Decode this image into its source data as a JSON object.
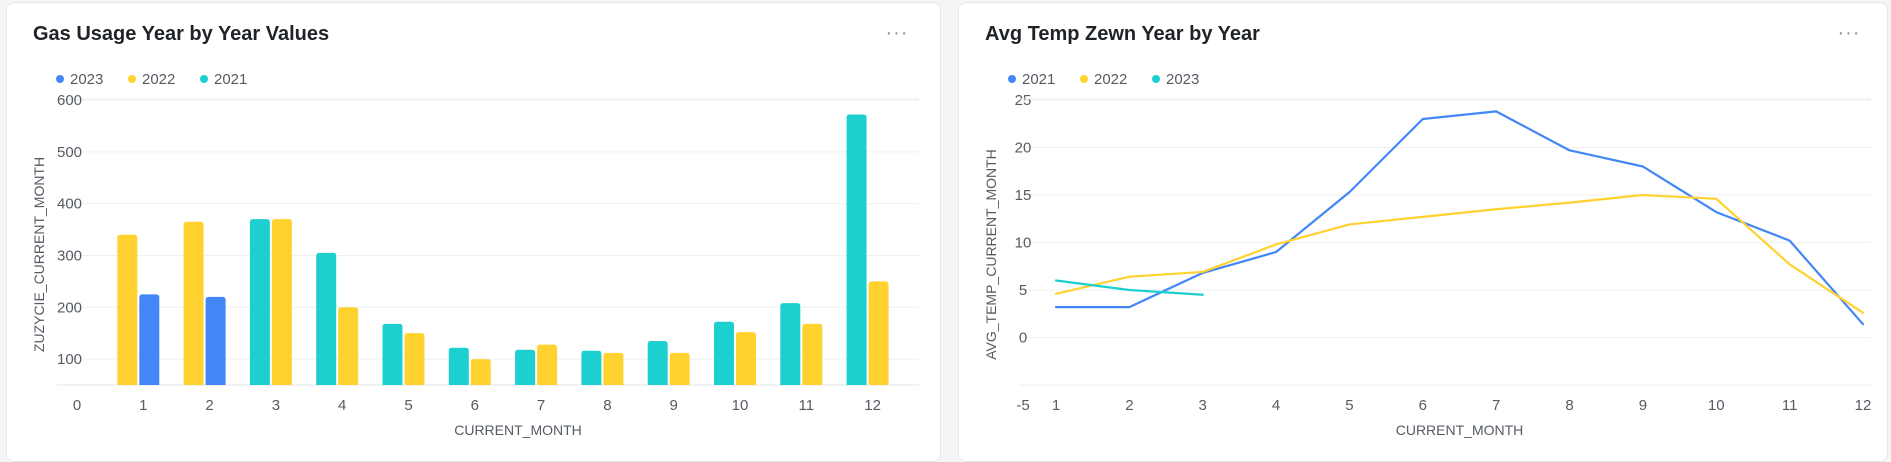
{
  "cards": [
    {
      "title": "Gas Usage Year by Year Values",
      "menu_label": "···"
    },
    {
      "title": "Avg Temp Zewn Year by Year",
      "menu_label": "···"
    }
  ],
  "chart_data": [
    {
      "type": "bar",
      "title": "Gas Usage Year by Year Values",
      "xlabel": "CURRENT_MONTH",
      "ylabel": "ZUZYCIE_CURRENT_MONTH",
      "x_ticks": [
        "0",
        "1",
        "2",
        "3",
        "4",
        "5",
        "6",
        "7",
        "8",
        "9",
        "10",
        "11",
        "12"
      ],
      "y_ticks": [
        "100",
        "200",
        "300",
        "400",
        "500",
        "600"
      ],
      "ylim": [
        50,
        600
      ],
      "xlim": [
        0,
        12.7
      ],
      "grid": true,
      "legend_position": "top-left",
      "series": [
        {
          "name": "2023",
          "color": "#4287f5",
          "points": [
            [
              1,
              225
            ],
            [
              2,
              220
            ]
          ]
        },
        {
          "name": "2022",
          "color": "#ffd230",
          "points": [
            [
              1,
              340
            ],
            [
              2,
              365
            ],
            [
              3,
              370
            ],
            [
              4,
              200
            ],
            [
              5,
              150
            ],
            [
              6,
              100
            ],
            [
              7,
              128
            ],
            [
              8,
              112
            ],
            [
              9,
              112
            ],
            [
              10,
              152
            ],
            [
              11,
              168
            ],
            [
              12,
              250
            ]
          ]
        },
        {
          "name": "2021",
          "color": "#1ecfcf",
          "points": [
            [
              3,
              370
            ],
            [
              4,
              305
            ],
            [
              5,
              168
            ],
            [
              6,
              122
            ],
            [
              7,
              118
            ],
            [
              8,
              116
            ],
            [
              9,
              135
            ],
            [
              10,
              172
            ],
            [
              11,
              208
            ],
            [
              12,
              572
            ]
          ]
        }
      ]
    },
    {
      "type": "line",
      "title": "Avg Temp Zewn Year by Year",
      "xlabel": "CURRENT_MONTH",
      "ylabel": "AVG_TEMP_CURRENT_MONTH",
      "x_ticks": [
        "1",
        "2",
        "3",
        "4",
        "5",
        "6",
        "7",
        "8",
        "9",
        "10",
        "11",
        "12"
      ],
      "y_ticks": [
        "-5",
        "0",
        "5",
        "10",
        "15",
        "20",
        "25"
      ],
      "ylim": [
        -5,
        25
      ],
      "xlim": [
        1,
        12
      ],
      "grid": true,
      "legend_position": "top-left",
      "series": [
        {
          "name": "2021",
          "color": "#4287f5",
          "x": [
            1,
            2,
            3,
            4,
            5,
            6,
            7,
            8,
            9,
            10,
            11,
            12
          ],
          "values": [
            3.2,
            3.2,
            6.8,
            9.0,
            15.3,
            23.0,
            23.8,
            19.7,
            18.0,
            13.2,
            10.2,
            1.4
          ]
        },
        {
          "name": "2022",
          "color": "#ffd230",
          "x": [
            1,
            2,
            3,
            4,
            5,
            6,
            7,
            8,
            9,
            10,
            11,
            12
          ],
          "values": [
            4.6,
            6.4,
            6.9,
            9.8,
            11.9,
            12.7,
            13.5,
            14.2,
            15.0,
            14.6,
            7.7,
            2.6
          ]
        },
        {
          "name": "2023",
          "color": "#1ecfcf",
          "x": [
            1,
            2,
            3
          ],
          "values": [
            6.0,
            5.0,
            4.5
          ]
        }
      ]
    }
  ]
}
